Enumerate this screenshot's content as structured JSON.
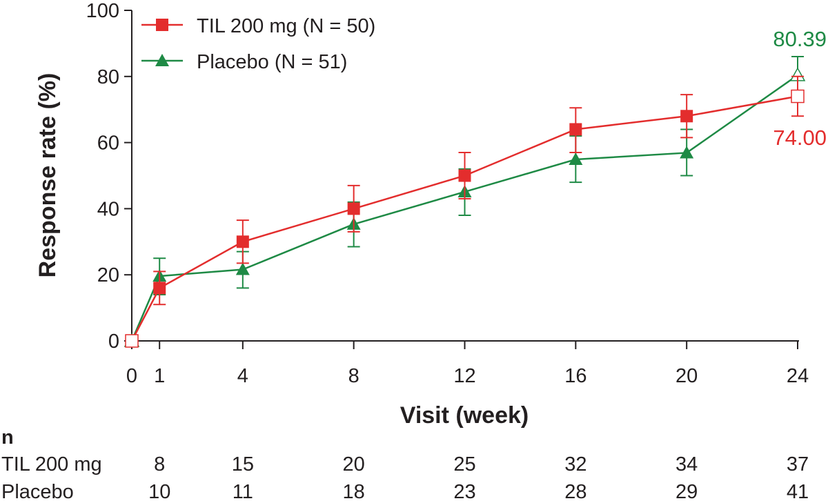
{
  "chart_data": {
    "type": "line",
    "xlabel": "Visit (week)",
    "ylabel": "Response rate (%)",
    "ylim": [
      0,
      100
    ],
    "y_ticks": [
      "0",
      "20",
      "40",
      "60",
      "80",
      "100"
    ],
    "x_ticks": [
      "0",
      "1",
      "4",
      "8",
      "12",
      "16",
      "20",
      "24"
    ],
    "x": [
      0,
      1,
      4,
      8,
      12,
      16,
      20,
      24
    ],
    "legend_position": "top-left",
    "series": [
      {
        "name": "TIL 200 mg (N = 50)",
        "color": "#e32d2d",
        "marker": "square",
        "values": [
          0,
          16,
          30,
          40,
          50,
          64,
          68,
          74
        ],
        "err_low": [
          0,
          11,
          23.5,
          33,
          43,
          57,
          61.5,
          68
        ],
        "err_high": [
          0,
          21,
          36.5,
          47,
          57,
          70.5,
          74.5,
          80
        ]
      },
      {
        "name": "Placebo (N = 51)",
        "color": "#1e8a45",
        "marker": "triangle",
        "values": [
          0,
          19.6,
          21.6,
          35.3,
          45.1,
          54.9,
          56.9,
          80.39
        ],
        "err_low": [
          0,
          14,
          16,
          28.5,
          38,
          48,
          50,
          74.5
        ],
        "err_high": [
          0,
          25,
          27,
          42,
          52,
          62,
          64,
          86
        ]
      }
    ],
    "end_labels": [
      {
        "text": "80.39",
        "color": "#1e8a45"
      },
      {
        "text": "74.00",
        "color": "#e32d2d"
      }
    ],
    "risk_table": {
      "header": "n",
      "rows": [
        {
          "label": "TIL 200 mg",
          "values": [
            "8",
            "15",
            "20",
            "25",
            "32",
            "34",
            "37"
          ]
        },
        {
          "label": "Placebo",
          "values": [
            "10",
            "11",
            "18",
            "23",
            "28",
            "29",
            "41"
          ]
        }
      ]
    }
  }
}
